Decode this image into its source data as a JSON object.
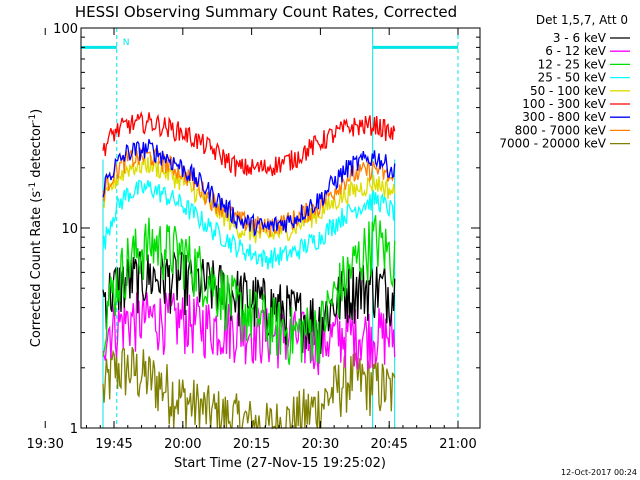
{
  "chart_data": {
    "type": "line",
    "title": "HESSI Observing Summary Count Rates, Corrected",
    "xlabel": "Start Time (27-Nov-15 19:25:02)",
    "ylabel_main": "Corrected Count Rate (s",
    "ylabel_sup1": "-1",
    "ylabel_mid": " detector",
    "ylabel_sup2": "-1",
    "ylabel_end": ")",
    "y_scale": "log",
    "ylim": [
      1,
      100
    ],
    "xlim_minutes": [
      19.63,
      21.08
    ],
    "x_ticks": [
      "19:30",
      "19:45",
      "20:00",
      "20:15",
      "20:30",
      "20:45",
      "21:00"
    ],
    "x_ticks_min": [
      19.5,
      19.75,
      20.0,
      20.25,
      20.5,
      20.75,
      21.0
    ],
    "y_ticks": [
      "1",
      "10",
      "100"
    ],
    "y_ticks_val": [
      1,
      10,
      100
    ],
    "legend_header": "Det 1,5,7, Att 0",
    "legend_position": "top-right",
    "night_flag_label": "N",
    "data_start": 19.71,
    "data_end": 20.77,
    "series": [
      {
        "name": "3 - 6 keV",
        "color": "#000000",
        "x": [
          19.71,
          19.75,
          19.8,
          19.88,
          20.0,
          20.1,
          20.2,
          20.3,
          20.4,
          20.5,
          20.6,
          20.7,
          20.77
        ],
        "y": [
          4.5,
          5.0,
          5.5,
          5.8,
          5.6,
          5.2,
          4.7,
          4.2,
          3.8,
          3.5,
          5.0,
          5.2,
          4.8
        ]
      },
      {
        "name": "6 - 12 keV",
        "color": "#ff00ff",
        "x": [
          19.71,
          19.75,
          19.8,
          19.88,
          20.0,
          20.1,
          20.2,
          20.3,
          20.4,
          20.5,
          20.6,
          20.7,
          20.77
        ],
        "y": [
          3.0,
          3.3,
          3.5,
          3.6,
          3.5,
          3.3,
          3.2,
          3.0,
          2.9,
          2.8,
          3.0,
          3.0,
          2.9
        ]
      },
      {
        "name": "12 - 25 keV",
        "color": "#00dd00",
        "x": [
          19.71,
          19.75,
          19.8,
          19.88,
          20.0,
          20.1,
          20.2,
          20.3,
          20.4,
          20.5,
          20.6,
          20.7,
          20.77
        ],
        "y": [
          3.5,
          5.0,
          7.0,
          8.5,
          7.5,
          5.5,
          4.0,
          3.5,
          3.0,
          3.2,
          6.0,
          9.0,
          7.0
        ]
      },
      {
        "name": "25 - 50 keV",
        "color": "#00ffff",
        "x": [
          19.71,
          19.75,
          19.8,
          19.88,
          20.0,
          20.1,
          20.2,
          20.3,
          20.4,
          20.5,
          20.6,
          20.7,
          20.77
        ],
        "y": [
          8.0,
          12.0,
          15.0,
          16.0,
          13.0,
          10.0,
          8.0,
          7.0,
          7.5,
          9.0,
          12.0,
          14.0,
          12.0
        ]
      },
      {
        "name": "50 - 100 keV",
        "color": "#dddd00",
        "x": [
          19.71,
          19.75,
          19.8,
          19.88,
          20.0,
          20.1,
          20.2,
          20.3,
          20.4,
          20.5,
          20.6,
          20.7,
          20.77
        ],
        "y": [
          13.0,
          17.0,
          20.0,
          21.0,
          17.0,
          13.0,
          10.0,
          9.0,
          10.0,
          12.0,
          15.0,
          17.0,
          15.0
        ]
      },
      {
        "name": "100 - 300 keV",
        "color": "#ff0000",
        "x": [
          19.71,
          19.75,
          19.8,
          19.88,
          20.0,
          20.1,
          20.2,
          20.3,
          20.4,
          20.5,
          20.6,
          20.7,
          20.77
        ],
        "y": [
          25.0,
          30.0,
          33.0,
          34.0,
          30.0,
          25.0,
          20.0,
          20.0,
          22.0,
          27.0,
          32.0,
          33.0,
          29.0
        ]
      },
      {
        "name": "300 - 800 keV",
        "color": "#0000ff",
        "x": [
          19.71,
          19.75,
          19.8,
          19.88,
          20.0,
          20.1,
          20.2,
          20.3,
          20.4,
          20.5,
          20.6,
          20.7,
          20.77
        ],
        "y": [
          16.0,
          20.0,
          24.0,
          25.0,
          20.0,
          15.0,
          11.0,
          10.0,
          11.0,
          14.0,
          20.0,
          23.0,
          19.0
        ]
      },
      {
        "name": "800 - 7000 keV",
        "color": "#ff8000",
        "x": [
          19.71,
          19.75,
          19.8,
          19.88,
          20.0,
          20.1,
          20.2,
          20.3,
          20.4,
          20.5,
          20.6,
          20.7,
          20.77
        ],
        "y": [
          15.0,
          19.0,
          22.0,
          23.0,
          19.0,
          14.0,
          11.0,
          10.0,
          11.0,
          13.0,
          18.0,
          20.0,
          17.0
        ]
      },
      {
        "name": "7000 - 20000 keV",
        "color": "#808000",
        "x": [
          19.71,
          19.75,
          19.8,
          19.88,
          20.0,
          20.1,
          20.2,
          20.3,
          20.4,
          20.5,
          20.6,
          20.7,
          20.77
        ],
        "y": [
          1.5,
          2.0,
          2.0,
          1.8,
          1.4,
          1.2,
          1.1,
          1.0,
          1.1,
          1.3,
          1.8,
          1.7,
          1.5
        ]
      }
    ],
    "flag_segments": [
      [
        19.63,
        19.76
      ],
      [
        20.69,
        21.0
      ]
    ],
    "flag_boundaries": [
      19.76,
      20.69,
      21.0
    ],
    "grid": false
  },
  "footer": {
    "timestamp": "12-Oct-2017 00:24"
  }
}
